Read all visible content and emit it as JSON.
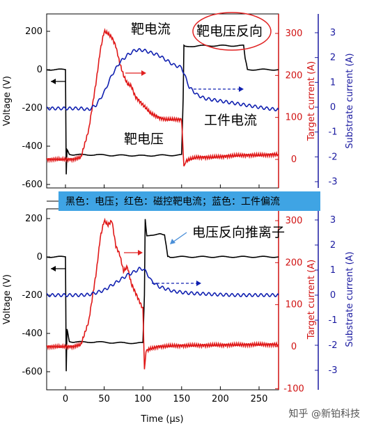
{
  "legend_note": "黑色：电压；红色：磁控靶电流；蓝色：工件偏流",
  "watermark": "知乎 @新铂科技",
  "colors": {
    "voltage": "#000000",
    "target": "#e01818",
    "substrate": "#1020b0",
    "right_axis_red": "#d01010",
    "right_axis_blue": "#1a1aa0"
  },
  "x_axis": {
    "label": "Time (μs)",
    "ticks": [
      "0",
      "50",
      "100",
      "150",
      "200",
      "250"
    ]
  },
  "chart_data": [
    {
      "type": "line",
      "panel": "top",
      "annotations": [
        "靶电流",
        "靶电压反向",
        "工件电流",
        "靶电压"
      ],
      "axes": {
        "left": {
          "label": "Voltage (V)",
          "range": [
            -700,
            250
          ],
          "ticks": [
            "200",
            "0",
            "-200",
            "-400",
            "-600"
          ]
        },
        "right1": {
          "label": "Target current (A)",
          "range": [
            -75,
            350
          ],
          "ticks": [
            "300",
            "200",
            "100",
            "0"
          ]
        },
        "right2": {
          "label": "Substrate current (A)",
          "range": [
            -3.5,
            3.5
          ],
          "ticks": [
            "3",
            "2",
            "1",
            "0",
            "-1",
            "-2",
            "-3"
          ]
        },
        "x": {
          "range": [
            -25,
            275
          ]
        }
      },
      "series": [
        {
          "name": "Voltage",
          "axis": "left",
          "x": [
            -25,
            0,
            1,
            2,
            5,
            10,
            20,
            40,
            60,
            80,
            100,
            120,
            140,
            150,
            152,
            153,
            155,
            160,
            180,
            200,
            220,
            230,
            232,
            235,
            250,
            275
          ],
          "y": [
            0,
            0,
            -550,
            -420,
            -440,
            -445,
            -445,
            -445,
            -448,
            -448,
            -450,
            -448,
            -447,
            -446,
            -150,
            130,
            120,
            122,
            125,
            125,
            125,
            125,
            60,
            0,
            0,
            0
          ]
        },
        {
          "name": "Target current",
          "axis": "right1",
          "x": [
            -25,
            0,
            10,
            20,
            30,
            40,
            45,
            50,
            55,
            60,
            65,
            70,
            75,
            80,
            85,
            90,
            95,
            100,
            110,
            120,
            130,
            140,
            150,
            153,
            155,
            160,
            170,
            190,
            210,
            230,
            250,
            275
          ],
          "y": [
            0,
            0,
            0,
            5,
            70,
            190,
            260,
            305,
            300,
            290,
            270,
            230,
            200,
            180,
            175,
            150,
            140,
            130,
            110,
            100,
            95,
            95,
            95,
            -20,
            -5,
            0,
            5,
            5,
            8,
            10,
            10,
            12
          ]
        },
        {
          "name": "Substrate current",
          "axis": "right2",
          "x": [
            -25,
            0,
            20,
            30,
            40,
            50,
            60,
            70,
            80,
            90,
            100,
            110,
            120,
            130,
            140,
            150,
            155,
            160,
            170,
            180,
            200,
            220,
            240,
            260,
            275
          ],
          "y": [
            -0.05,
            -0.05,
            -0.05,
            -0.1,
            0.1,
            0.6,
            1.3,
            1.8,
            2.1,
            2.3,
            2.3,
            2.2,
            2.1,
            1.9,
            1.7,
            1.6,
            1.2,
            0.8,
            0.5,
            0.35,
            0.25,
            0.15,
            0.05,
            -0.05,
            -0.1
          ]
        }
      ]
    },
    {
      "type": "line",
      "panel": "bottom",
      "annotations": [
        "电压反向推离子"
      ],
      "axes": {
        "left": {
          "label": "Voltage (V)",
          "range": [
            -700,
            250
          ],
          "ticks": [
            "200",
            "0",
            "-200",
            "-400",
            "-600"
          ]
        },
        "right1": {
          "label": "Target current (A)",
          "range": [
            -100,
            350
          ],
          "ticks": [
            "300",
            "200",
            "100",
            "0",
            "-100"
          ]
        },
        "right2": {
          "label": "Substrate current (A)",
          "range": [
            -3.5,
            3.5
          ],
          "ticks": [
            "3",
            "2",
            "1",
            "0",
            "-1",
            "-2",
            "-3"
          ]
        },
        "x": {
          "range": [
            -25,
            275
          ]
        }
      },
      "series": [
        {
          "name": "Voltage",
          "axis": "left",
          "x": [
            -25,
            0,
            1,
            2,
            5,
            10,
            20,
            40,
            60,
            80,
            95,
            100,
            102,
            103,
            105,
            110,
            120,
            128,
            130,
            132,
            135,
            150,
            200,
            250,
            275
          ],
          "y": [
            0,
            0,
            -600,
            -380,
            -440,
            -445,
            -445,
            -445,
            -448,
            -450,
            -450,
            -450,
            -200,
            200,
            110,
            115,
            118,
            118,
            60,
            0,
            0,
            0,
            0,
            0,
            0
          ]
        },
        {
          "name": "Target current",
          "axis": "right1",
          "x": [
            -25,
            0,
            10,
            20,
            30,
            40,
            45,
            50,
            55,
            60,
            65,
            70,
            75,
            80,
            85,
            90,
            95,
            100,
            102,
            104,
            106,
            110,
            120,
            140,
            170,
            210,
            250,
            275
          ],
          "y": [
            0,
            0,
            0,
            5,
            60,
            180,
            260,
            300,
            290,
            300,
            240,
            220,
            180,
            190,
            150,
            130,
            110,
            90,
            -50,
            -15,
            -8,
            -5,
            0,
            2,
            3,
            4,
            5,
            5
          ]
        },
        {
          "name": "Substrate current",
          "axis": "right2",
          "x": [
            -25,
            0,
            20,
            30,
            40,
            50,
            60,
            70,
            80,
            90,
            95,
            100,
            105,
            110,
            120,
            130,
            140,
            160,
            180,
            200,
            220,
            240,
            260,
            275
          ],
          "y": [
            0,
            0,
            0,
            0.02,
            0.1,
            0.2,
            0.4,
            0.6,
            0.8,
            0.95,
            1.05,
            1.05,
            0.9,
            0.6,
            0.35,
            0.25,
            0.15,
            0.08,
            0.05,
            0.02,
            0,
            0,
            0,
            0
          ]
        }
      ]
    }
  ]
}
